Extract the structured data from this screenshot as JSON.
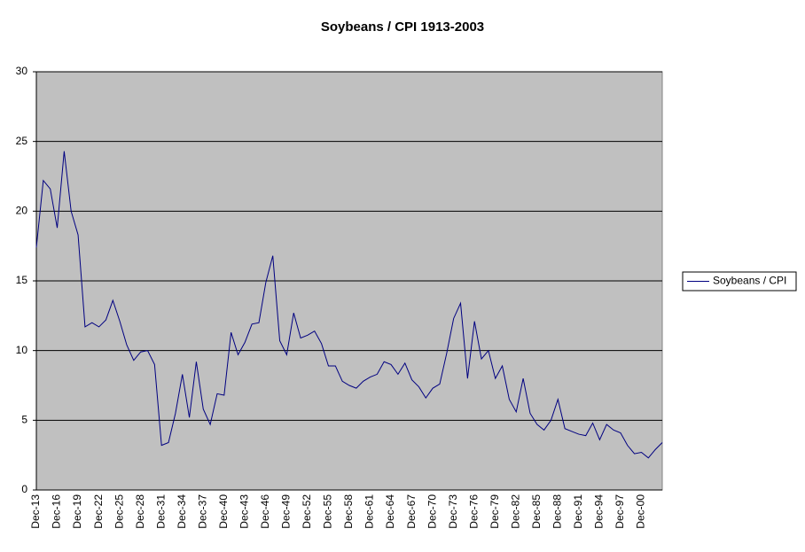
{
  "chart_data": {
    "type": "line",
    "title": "Soybeans / CPI 1913-2003",
    "categories": [
      "Dec-13",
      null,
      null,
      "Dec-16",
      null,
      null,
      "Dec-19",
      null,
      null,
      "Dec-22",
      null,
      null,
      "Dec-25",
      null,
      null,
      "Dec-28",
      null,
      null,
      "Dec-31",
      null,
      null,
      "Dec-34",
      null,
      null,
      "Dec-37",
      null,
      null,
      "Dec-40",
      null,
      null,
      "Dec-43",
      null,
      null,
      "Dec-46",
      null,
      null,
      "Dec-49",
      null,
      null,
      "Dec-52",
      null,
      null,
      "Dec-55",
      null,
      null,
      "Dec-58",
      null,
      null,
      "Dec-61",
      null,
      null,
      "Dec-64",
      null,
      null,
      "Dec-67",
      null,
      null,
      "Dec-70",
      null,
      null,
      "Dec-73",
      null,
      null,
      "Dec-76",
      null,
      null,
      "Dec-79",
      null,
      null,
      "Dec-82",
      null,
      null,
      "Dec-85",
      null,
      null,
      "Dec-88",
      null,
      null,
      "Dec-91",
      null,
      null,
      "Dec-94",
      null,
      null,
      "Dec-97",
      null,
      null,
      "Dec-00",
      null,
      null,
      null
    ],
    "series": [
      {
        "name": "Soybeans / CPI",
        "color": "#000080",
        "values": [
          17.4,
          22.2,
          21.6,
          18.8,
          24.3,
          20.0,
          18.3,
          11.7,
          12.0,
          11.7,
          12.2,
          13.6,
          12.1,
          10.4,
          9.3,
          9.9,
          10.0,
          9.0,
          3.2,
          3.4,
          5.5,
          8.3,
          5.2,
          9.2,
          5.8,
          4.7,
          6.9,
          6.8,
          11.3,
          9.7,
          10.6,
          11.9,
          12.0,
          14.9,
          16.8,
          10.7,
          9.7,
          12.7,
          10.9,
          11.1,
          11.4,
          10.5,
          8.9,
          8.9,
          7.8,
          7.5,
          7.3,
          7.8,
          8.1,
          8.3,
          9.2,
          9.0,
          8.3,
          9.1,
          7.9,
          7.4,
          6.6,
          7.3,
          7.6,
          9.8,
          12.3,
          13.4,
          8.0,
          12.1,
          9.4,
          10.0,
          8.0,
          8.9,
          6.5,
          5.6,
          8.0,
          5.5,
          4.7,
          4.3,
          5.0,
          6.5,
          4.4,
          4.2,
          4.0,
          3.9,
          4.8,
          3.6,
          4.7,
          4.3,
          4.1,
          3.2,
          2.6,
          2.7,
          2.3,
          2.9,
          3.4
        ]
      }
    ],
    "ylim": [
      0,
      30
    ],
    "yticks": [
      0,
      5,
      10,
      15,
      20,
      25,
      30
    ],
    "grid": true,
    "legend": "right",
    "plot_background": "#c0c0c0"
  }
}
